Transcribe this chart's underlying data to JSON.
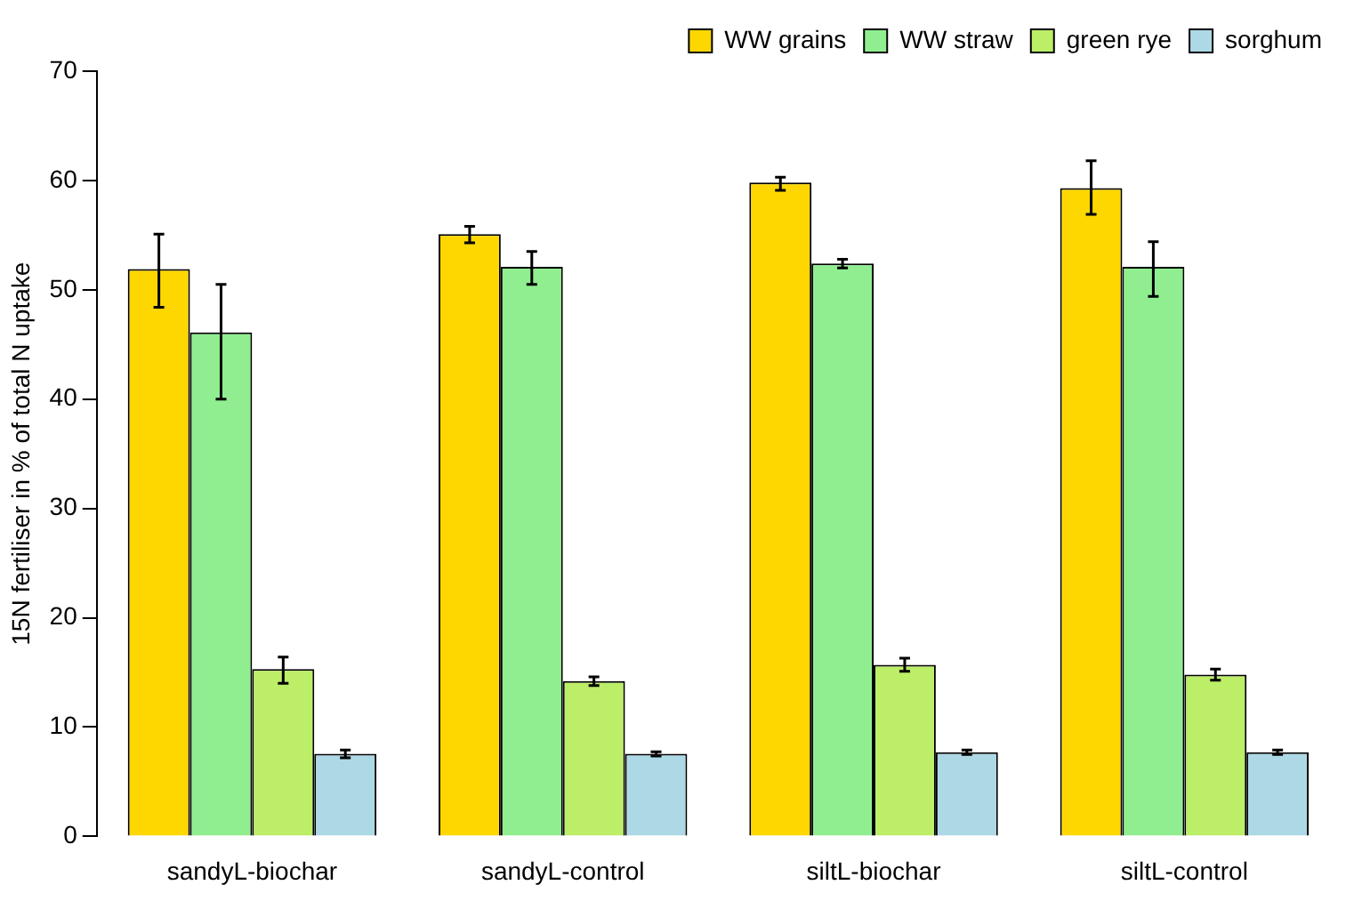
{
  "chart_data": {
    "type": "bar",
    "ylabel": "15N fertiliser in % of total N uptake",
    "categories": [
      "sandyL-biochar",
      "sandyL-control",
      "siltL-biochar",
      "siltL-control"
    ],
    "series": [
      {
        "name": "WW grains",
        "color": "#ffd700",
        "values": [
          51.9,
          55.1,
          59.8,
          59.3
        ],
        "errors": [
          [
            48.4,
            55.1
          ],
          [
            54.3,
            55.8
          ],
          [
            59.1,
            60.3
          ],
          [
            56.9,
            61.8
          ]
        ]
      },
      {
        "name": "WW straw",
        "color": "#90ee90",
        "values": [
          46.1,
          52.1,
          52.4,
          52.1
        ],
        "errors": [
          [
            40.0,
            50.5
          ],
          [
            50.5,
            53.5
          ],
          [
            52.0,
            52.8
          ],
          [
            49.4,
            54.4
          ]
        ]
      },
      {
        "name": "green rye",
        "color": "#bcee68",
        "values": [
          15.3,
          14.2,
          15.7,
          14.8
        ],
        "errors": [
          [
            14.0,
            16.4
          ],
          [
            13.8,
            14.6
          ],
          [
            15.1,
            16.3
          ],
          [
            14.3,
            15.3
          ]
        ]
      },
      {
        "name": "sorghum",
        "color": "#add8e6",
        "values": [
          7.55,
          7.55,
          7.7,
          7.7
        ],
        "errors": [
          [
            7.2,
            7.9
          ],
          [
            7.35,
            7.75
          ],
          [
            7.5,
            7.9
          ],
          [
            7.5,
            7.9
          ]
        ]
      }
    ],
    "ylim": [
      0,
      70
    ],
    "yticks": [
      0,
      10,
      20,
      30,
      40,
      50,
      60,
      70
    ],
    "grid": false,
    "legend": "top right"
  }
}
